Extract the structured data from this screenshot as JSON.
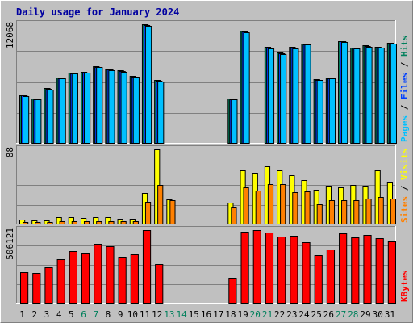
{
  "title": "Daily usage for January 2024",
  "chart_data": {
    "type": "bar",
    "categories": [
      "1",
      "2",
      "3",
      "4",
      "5",
      "6",
      "7",
      "8",
      "9",
      "10",
      "11",
      "12",
      "13",
      "14",
      "15",
      "16",
      "17",
      "18",
      "19",
      "20",
      "21",
      "22",
      "23",
      "24",
      "25",
      "26",
      "27",
      "28",
      "29",
      "30",
      "31"
    ],
    "weekend_days": [
      "6",
      "7",
      "13",
      "14",
      "20",
      "21",
      "27",
      "28"
    ],
    "panels": [
      {
        "name": "hits-files",
        "max_label": "12068",
        "ymax": 12068,
        "legend": [
          {
            "text": "Pages",
            "color": "#00c0ff"
          },
          {
            "text": " / ",
            "color": "#000000"
          },
          {
            "text": "Files",
            "color": "#0040ff"
          },
          {
            "text": " / ",
            "color": "#000000"
          },
          {
            "text": "Hits",
            "color": "#00805c"
          }
        ],
        "series": [
          {
            "name": "Hits",
            "color": "#00805c",
            "values": [
              4880,
              4510,
              5560,
              6670,
              7160,
              7240,
              7790,
              7500,
              7350,
              6820,
              12068,
              6370,
              0,
              0,
              0,
              0,
              0,
              4510,
              11420,
              0,
              9780,
              9180,
              9770,
              10100,
              6490,
              6650,
              10380,
              9700,
              9900,
              9790,
              10180
            ]
          },
          {
            "name": "Files",
            "color": "#0040ff",
            "values": [
              4830,
              4450,
              5500,
              6600,
              7100,
              7180,
              7730,
              7440,
              7290,
              6760,
              11960,
              6320,
              0,
              0,
              0,
              0,
              0,
              4460,
              11300,
              0,
              9700,
              9100,
              9700,
              10050,
              6420,
              6600,
              10320,
              9650,
              9840,
              9720,
              10120
            ]
          },
          {
            "name": "Pages",
            "color": "#00c0ff",
            "values": [
              4780,
              4400,
              5450,
              6550,
              7060,
              7130,
              7680,
              7400,
              7240,
              6710,
              11900,
              6280,
              0,
              0,
              0,
              0,
              0,
              4420,
              11220,
              0,
              9630,
              9050,
              9640,
              10000,
              6380,
              6560,
              10260,
              9600,
              9790,
              9670,
              10070
            ]
          }
        ]
      },
      {
        "name": "visits-sites",
        "max_label": "88",
        "ymax": 88,
        "legend": [
          {
            "text": "Sites",
            "color": "#ff8000"
          },
          {
            "text": " / ",
            "color": "#000000"
          },
          {
            "text": "Visits",
            "color": "#ffff00"
          }
        ],
        "series": [
          {
            "name": "Visits",
            "color": "#ffff00",
            "values": [
              5,
              4,
              4,
              8,
              8,
              7,
              8,
              8,
              6,
              6,
              36,
              88,
              29,
              0,
              0,
              0,
              0,
              25,
              63,
              60,
              68,
              63,
              57,
              52,
              40,
              45,
              43,
              46,
              45,
              63,
              49
            ]
          },
          {
            "name": "Sites",
            "color": "#ff8000",
            "values": [
              2,
              2,
              2,
              3,
              3,
              3,
              3,
              3,
              3,
              3,
              26,
              46,
              28,
              0,
              0,
              0,
              0,
              20,
              43,
              39,
              47,
              47,
              37,
              38,
              23,
              28,
              28,
              28,
              30,
              32,
              30
            ]
          }
        ]
      },
      {
        "name": "kbytes",
        "max_label": "506121",
        "ymax": 506121,
        "legend": [
          {
            "text": "KBytes",
            "color": "#ff0000"
          }
        ],
        "series": [
          {
            "name": "KBytes",
            "color": "#ff0000",
            "values": [
              214000,
              207000,
              246000,
              304000,
              362000,
              349000,
              413000,
              391000,
              322000,
              340000,
              506121,
              272000,
              0,
              0,
              0,
              0,
              0,
              175000,
              495000,
              506121,
              488000,
              461000,
              465000,
              421000,
              331000,
              370000,
              485000,
              458000,
              474000,
              450000,
              427000
            ]
          }
        ]
      }
    ]
  }
}
